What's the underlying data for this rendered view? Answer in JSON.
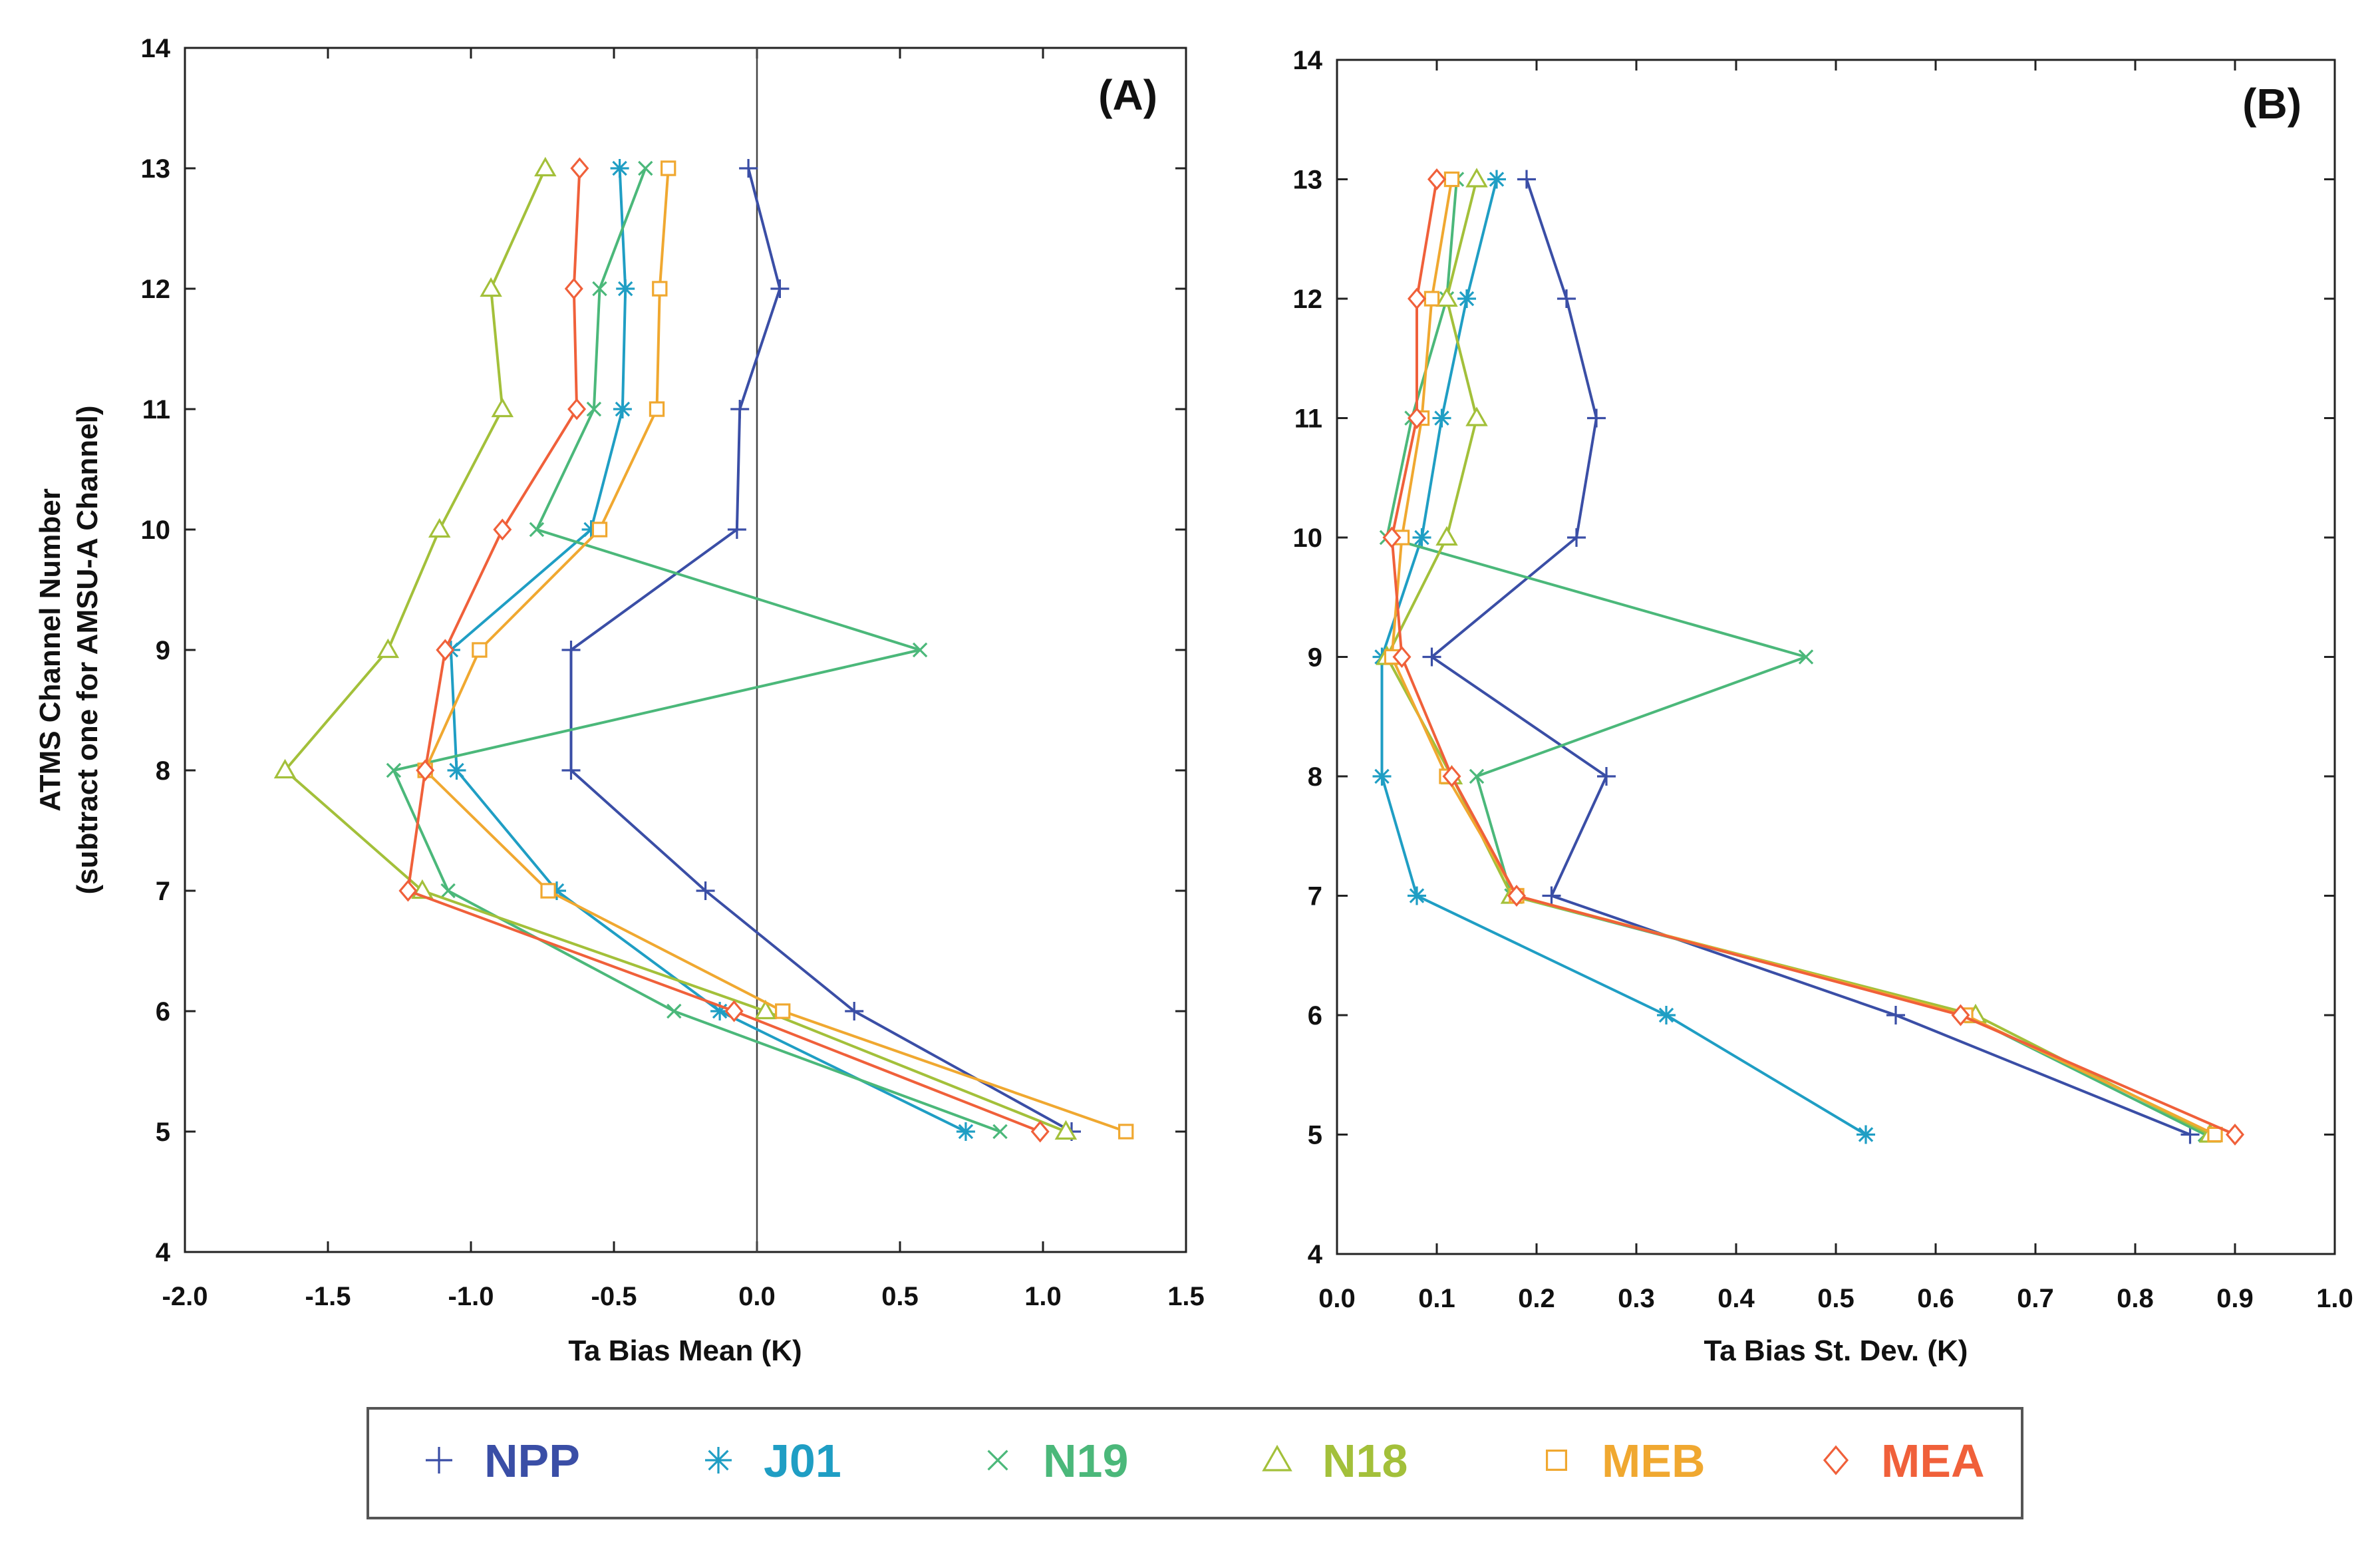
{
  "chart_data": [
    {
      "id": "A",
      "type": "line",
      "panel_label": "(A)",
      "xlabel": "Ta Bias Mean (K)",
      "ylabel": "ATMS Channel Number",
      "ylabel2": "(subtract one for AMSU-A Channel)",
      "xlim": [
        -2.0,
        1.5
      ],
      "ylim": [
        4,
        14
      ],
      "xticks": [
        "-2.0",
        "-1.5",
        "-1.0",
        "-0.5",
        "0.0",
        "0.5",
        "1.0",
        "1.5"
      ],
      "yticks": [
        "4",
        "5",
        "6",
        "7",
        "8",
        "9",
        "10",
        "11",
        "12",
        "13",
        "14"
      ],
      "reference_line_x": 0.0,
      "channels": [
        5,
        6,
        7,
        8,
        9,
        10,
        11,
        12,
        13
      ],
      "series": [
        {
          "name": "NPP",
          "values": [
            1.1,
            0.34,
            -0.18,
            -0.65,
            -0.65,
            -0.07,
            -0.06,
            0.08,
            -0.03
          ]
        },
        {
          "name": "J01",
          "values": [
            0.73,
            -0.13,
            -0.7,
            -1.05,
            -1.07,
            -0.58,
            -0.47,
            -0.46,
            -0.48
          ]
        },
        {
          "name": "N19",
          "values": [
            0.85,
            -0.29,
            -1.08,
            -1.27,
            0.57,
            -0.77,
            -0.57,
            -0.55,
            -0.39
          ]
        },
        {
          "name": "N18",
          "values": [
            1.08,
            0.03,
            -1.17,
            -1.65,
            -1.29,
            -1.11,
            -0.89,
            -0.93,
            -0.74
          ]
        },
        {
          "name": "MEB",
          "values": [
            1.29,
            0.09,
            -0.73,
            -1.16,
            -0.97,
            -0.55,
            -0.35,
            -0.34,
            -0.31
          ]
        },
        {
          "name": "MEA",
          "values": [
            0.99,
            -0.08,
            -1.22,
            -1.16,
            -1.09,
            -0.89,
            -0.63,
            -0.64,
            -0.62
          ]
        }
      ]
    },
    {
      "id": "B",
      "type": "line",
      "panel_label": "(B)",
      "xlabel": "Ta Bias St. Dev. (K)",
      "xlim": [
        0.0,
        1.0
      ],
      "ylim": [
        4,
        14
      ],
      "xticks": [
        "0.0",
        "0.1",
        "0.2",
        "0.3",
        "0.4",
        "0.5",
        "0.6",
        "0.7",
        "0.8",
        "0.9",
        "1.0"
      ],
      "yticks": [
        "4",
        "5",
        "6",
        "7",
        "8",
        "9",
        "10",
        "11",
        "12",
        "13",
        "14"
      ],
      "channels": [
        5,
        6,
        7,
        8,
        9,
        10,
        11,
        12,
        13
      ],
      "series": [
        {
          "name": "NPP",
          "values": [
            0.855,
            0.56,
            0.215,
            0.27,
            0.095,
            0.24,
            0.26,
            0.23,
            0.19
          ]
        },
        {
          "name": "J01",
          "values": [
            0.53,
            0.33,
            0.08,
            0.045,
            0.045,
            0.085,
            0.105,
            0.13,
            0.16
          ]
        },
        {
          "name": "N19",
          "values": [
            0.87,
            0.63,
            0.175,
            0.14,
            0.47,
            0.05,
            0.075,
            0.11,
            0.12
          ]
        },
        {
          "name": "N18",
          "values": [
            0.875,
            0.64,
            0.175,
            0.115,
            0.05,
            0.11,
            0.14,
            0.11,
            0.14
          ]
        },
        {
          "name": "MEB",
          "values": [
            0.88,
            0.63,
            0.18,
            0.11,
            0.055,
            0.065,
            0.085,
            0.095,
            0.115
          ]
        },
        {
          "name": "MEA",
          "values": [
            0.9,
            0.625,
            0.18,
            0.115,
            0.065,
            0.055,
            0.08,
            0.08,
            0.1
          ]
        }
      ]
    }
  ],
  "legend": {
    "entries": [
      {
        "name": "NPP",
        "label": "NPP",
        "marker": "plus",
        "color": "#3a4ea6"
      },
      {
        "name": "J01",
        "label": "J01",
        "marker": "asterisk",
        "color": "#1f9ec4"
      },
      {
        "name": "N19",
        "label": "N19",
        "marker": "cross",
        "color": "#4bb87a"
      },
      {
        "name": "N18",
        "label": "N18",
        "marker": "triangle",
        "color": "#a3c03a"
      },
      {
        "name": "MEB",
        "label": "MEB",
        "marker": "square",
        "color": "#f0a830"
      },
      {
        "name": "MEA",
        "label": "MEA",
        "marker": "diamond",
        "color": "#f0603a"
      }
    ]
  }
}
